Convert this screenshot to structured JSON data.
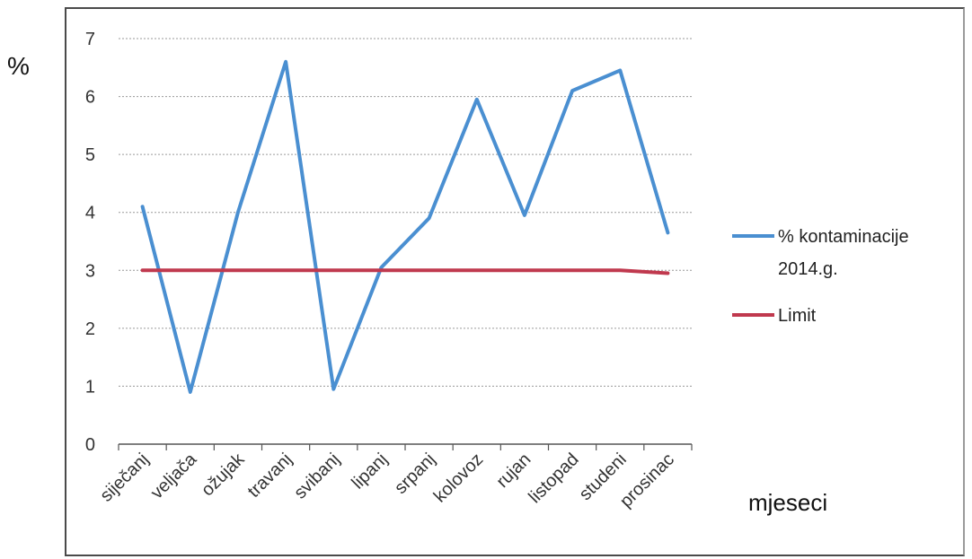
{
  "chart_data": {
    "type": "line",
    "ylabel": "%",
    "xlabel": "mjeseci",
    "ylim": [
      0,
      7
    ],
    "yticks": [
      0,
      1,
      2,
      3,
      4,
      5,
      6,
      7
    ],
    "categories": [
      "siječanj",
      "veljača",
      "ožujak",
      "travanj",
      "svibanj",
      "lipanj",
      "srpanj",
      "kolovoz",
      "rujan",
      "listopad",
      "studeni",
      "prosinac"
    ],
    "grid": "horizontal-dashed",
    "legend": "right",
    "series": [
      {
        "name": "% kontaminacije 2014.g.",
        "legend_lines": [
          "% kontaminacije",
          "2014.g."
        ],
        "color": "#4a8fd1",
        "values": [
          4.1,
          0.9,
          4.0,
          6.6,
          0.95,
          3.05,
          3.9,
          5.95,
          3.95,
          6.1,
          6.45,
          3.65
        ]
      },
      {
        "name": "Limit",
        "legend_lines": [
          "Limit"
        ],
        "color": "#c0394e",
        "values": [
          3.0,
          3.0,
          3.0,
          3.0,
          3.0,
          3.0,
          3.0,
          3.0,
          3.0,
          3.0,
          3.0,
          2.95
        ]
      }
    ]
  }
}
